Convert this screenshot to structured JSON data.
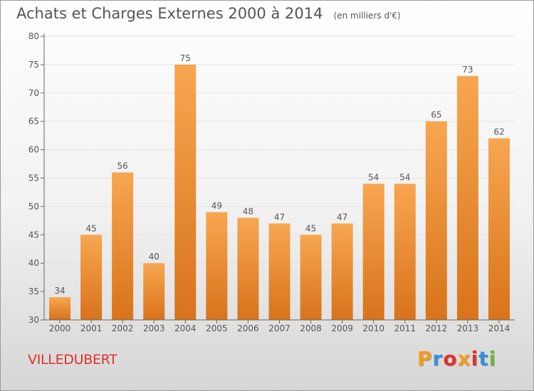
{
  "header": {
    "title": "Achats et Charges Externes 2000 à 2014",
    "subtitle": "(en milliers d'€)"
  },
  "footer": {
    "commune": "VILLEDUBERT",
    "logo_text": "Proxiti",
    "logo_colors": [
      "#f39a1c",
      "#3a8fd6",
      "#e0302e",
      "#f39a1c",
      "#e0302e",
      "#3a8fd6",
      "#6cb33f"
    ]
  },
  "colors": {
    "bar_light": "#f8a651",
    "bar_dark": "#d8731a",
    "axis": "#666666",
    "grid": "#e3e3e3",
    "text": "#555555",
    "commune": "#e0302e"
  },
  "chart_data": {
    "type": "bar",
    "title": "Achats et Charges Externes 2000 à 2014",
    "subtitle": "(en milliers d'€)",
    "xlabel": "",
    "ylabel": "",
    "categories": [
      "2000",
      "2001",
      "2002",
      "2003",
      "2004",
      "2005",
      "2006",
      "2007",
      "2008",
      "2009",
      "2010",
      "2011",
      "2012",
      "2013",
      "2014"
    ],
    "values": [
      34,
      45,
      56,
      40,
      75,
      49,
      48,
      47,
      45,
      47,
      54,
      54,
      65,
      73,
      62
    ],
    "ylim": [
      30,
      80
    ],
    "yticks": [
      30,
      35,
      40,
      45,
      50,
      55,
      60,
      65,
      70,
      75,
      80
    ],
    "grid": true,
    "data_labels": true,
    "legend": "none"
  }
}
